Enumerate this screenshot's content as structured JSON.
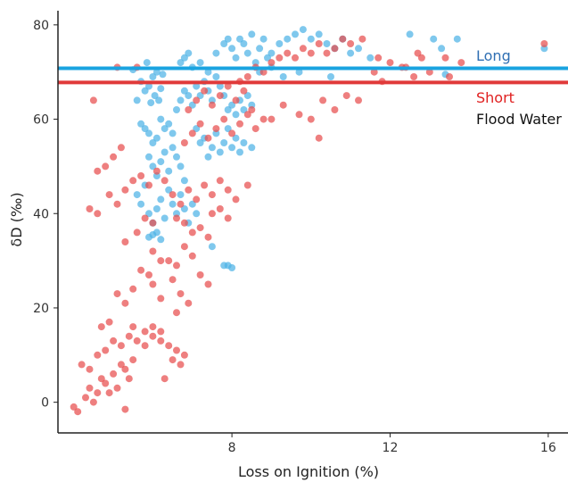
{
  "chart_data": {
    "type": "scatter",
    "title": "",
    "xlabel": "Loss on Ignition (%)",
    "ylabel": "δD (‰)",
    "xlim": [
      3.6,
      16.5
    ],
    "ylim": [
      -6.5,
      83
    ],
    "x_ticks": [
      8,
      12,
      16
    ],
    "y_ticks": [
      0,
      20,
      40,
      60,
      80
    ],
    "grid": false,
    "legend_placement": "right",
    "colors": {
      "long": "#4db3e6",
      "short": "#e84e4e",
      "long_line": "#1aa3e0",
      "short_line": "#e03a3a",
      "long_label": "#2f6fb3",
      "short_label": "#e02020",
      "flood_label": "#111111"
    },
    "reference_lines": [
      {
        "series": "Long",
        "y": 70.8
      },
      {
        "series": "Short",
        "y": 67.8
      }
    ],
    "legend": {
      "long": "Long",
      "short": "Short",
      "flood": "Flood Water"
    },
    "series": [
      {
        "name": "Long",
        "points": [
          [
            5.5,
            70.5
          ],
          [
            5.6,
            64
          ],
          [
            5.7,
            68
          ],
          [
            5.8,
            66
          ],
          [
            5.85,
            72
          ],
          [
            5.9,
            67
          ],
          [
            5.95,
            63.5
          ],
          [
            6.0,
            69
          ],
          [
            6.05,
            65
          ],
          [
            6.1,
            70
          ],
          [
            6.15,
            64
          ],
          [
            6.2,
            66.5
          ],
          [
            6.25,
            69.5
          ],
          [
            5.7,
            59
          ],
          [
            5.8,
            58
          ],
          [
            5.9,
            57
          ],
          [
            6.0,
            55
          ],
          [
            6.1,
            56
          ],
          [
            6.2,
            60
          ],
          [
            6.3,
            58
          ],
          [
            6.4,
            59
          ],
          [
            6.5,
            57
          ],
          [
            5.9,
            52
          ],
          [
            6.0,
            50
          ],
          [
            6.1,
            48
          ],
          [
            6.2,
            51
          ],
          [
            6.3,
            53
          ],
          [
            6.4,
            49
          ],
          [
            6.5,
            54
          ],
          [
            6.6,
            52
          ],
          [
            6.7,
            50
          ],
          [
            6.8,
            47
          ],
          [
            5.6,
            44
          ],
          [
            5.7,
            42
          ],
          [
            5.8,
            46
          ],
          [
            5.9,
            40
          ],
          [
            6.0,
            38
          ],
          [
            6.1,
            41
          ],
          [
            6.2,
            43
          ],
          [
            6.3,
            39
          ],
          [
            6.4,
            45
          ],
          [
            6.5,
            42
          ],
          [
            6.6,
            40
          ],
          [
            6.7,
            44
          ],
          [
            6.8,
            41
          ],
          [
            6.9,
            38
          ],
          [
            7.0,
            42
          ],
          [
            7.1,
            40
          ],
          [
            5.9,
            35
          ],
          [
            6.0,
            35.5
          ],
          [
            6.1,
            36
          ],
          [
            6.2,
            34.5
          ],
          [
            7.5,
            33
          ],
          [
            7.8,
            29
          ],
          [
            7.9,
            29
          ],
          [
            8.0,
            28.5
          ],
          [
            6.6,
            62
          ],
          [
            6.7,
            64
          ],
          [
            6.8,
            66
          ],
          [
            6.9,
            65
          ],
          [
            7.0,
            63
          ],
          [
            7.1,
            67
          ],
          [
            7.2,
            65
          ],
          [
            7.3,
            68
          ],
          [
            7.4,
            66
          ],
          [
            7.5,
            64
          ],
          [
            7.6,
            69
          ],
          [
            7.7,
            67
          ],
          [
            7.8,
            65
          ],
          [
            6.7,
            72
          ],
          [
            6.8,
            73
          ],
          [
            6.9,
            74
          ],
          [
            7.0,
            71
          ],
          [
            7.2,
            72
          ],
          [
            7.4,
            70
          ],
          [
            7.6,
            74
          ],
          [
            7.8,
            76
          ],
          [
            7.9,
            77
          ],
          [
            8.0,
            75
          ],
          [
            8.1,
            73
          ],
          [
            8.2,
            77
          ],
          [
            8.3,
            76
          ],
          [
            8.4,
            74
          ],
          [
            8.5,
            78
          ],
          [
            8.6,
            72
          ],
          [
            8.7,
            75
          ],
          [
            8.8,
            77
          ],
          [
            8.9,
            73
          ],
          [
            9.0,
            74
          ],
          [
            9.2,
            76
          ],
          [
            7.1,
            58
          ],
          [
            7.2,
            55
          ],
          [
            7.3,
            56
          ],
          [
            7.4,
            52
          ],
          [
            7.5,
            54
          ],
          [
            7.6,
            57
          ],
          [
            7.7,
            53
          ],
          [
            7.8,
            55
          ],
          [
            7.9,
            58
          ],
          [
            8.0,
            54
          ],
          [
            8.1,
            56
          ],
          [
            8.2,
            53
          ],
          [
            8.3,
            55
          ],
          [
            8.5,
            54
          ],
          [
            7.9,
            62
          ],
          [
            8.0,
            63
          ],
          [
            8.1,
            61
          ],
          [
            8.2,
            64
          ],
          [
            8.3,
            62
          ],
          [
            8.4,
            65
          ],
          [
            8.5,
            63
          ],
          [
            9.4,
            77
          ],
          [
            9.6,
            78
          ],
          [
            9.8,
            79
          ],
          [
            10.0,
            77
          ],
          [
            10.2,
            78
          ],
          [
            10.4,
            76
          ],
          [
            10.6,
            75
          ],
          [
            10.8,
            77
          ],
          [
            11.0,
            74
          ],
          [
            11.2,
            75
          ],
          [
            11.5,
            73
          ],
          [
            12.5,
            78
          ],
          [
            13.1,
            77
          ],
          [
            13.3,
            75
          ],
          [
            13.7,
            77
          ],
          [
            15.9,
            75
          ],
          [
            8.7,
            70
          ],
          [
            9.0,
            71
          ],
          [
            9.3,
            69
          ],
          [
            9.7,
            70
          ],
          [
            10.5,
            69
          ],
          [
            13.4,
            69.5
          ]
        ]
      },
      {
        "name": "Short",
        "points": [
          [
            4.5,
            64
          ],
          [
            5.1,
            71
          ],
          [
            5.6,
            71
          ],
          [
            4.0,
            -1
          ],
          [
            4.1,
            -2
          ],
          [
            4.3,
            1
          ],
          [
            4.4,
            3
          ],
          [
            4.5,
            0
          ],
          [
            4.6,
            2
          ],
          [
            4.7,
            5
          ],
          [
            4.8,
            4
          ],
          [
            4.9,
            2
          ],
          [
            5.0,
            6
          ],
          [
            5.1,
            3
          ],
          [
            5.2,
            8
          ],
          [
            5.3,
            7
          ],
          [
            5.4,
            5
          ],
          [
            5.5,
            9
          ],
          [
            4.2,
            8
          ],
          [
            4.4,
            7
          ],
          [
            4.6,
            10
          ],
          [
            4.8,
            11
          ],
          [
            5.0,
            13
          ],
          [
            5.2,
            12
          ],
          [
            5.4,
            14
          ],
          [
            5.6,
            13
          ],
          [
            5.8,
            12
          ],
          [
            6.0,
            14
          ],
          [
            6.2,
            13
          ],
          [
            6.4,
            12
          ],
          [
            6.6,
            11
          ],
          [
            6.8,
            10
          ],
          [
            4.7,
            16
          ],
          [
            4.9,
            17
          ],
          [
            5.5,
            16
          ],
          [
            5.8,
            15
          ],
          [
            6.0,
            16
          ],
          [
            6.2,
            15
          ],
          [
            5.3,
            -1.5
          ],
          [
            6.3,
            5
          ],
          [
            6.5,
            9
          ],
          [
            6.7,
            8
          ],
          [
            5.1,
            23
          ],
          [
            5.3,
            21
          ],
          [
            5.5,
            24
          ],
          [
            6.0,
            25
          ],
          [
            6.2,
            22
          ],
          [
            6.5,
            26
          ],
          [
            6.7,
            23
          ],
          [
            6.9,
            21
          ],
          [
            7.2,
            27
          ],
          [
            7.4,
            25
          ],
          [
            6.6,
            19
          ],
          [
            6.4,
            30
          ],
          [
            6.6,
            29
          ],
          [
            7.0,
            31
          ],
          [
            6.8,
            33
          ],
          [
            6.0,
            32
          ],
          [
            6.2,
            30
          ],
          [
            5.7,
            28
          ],
          [
            5.9,
            27
          ],
          [
            5.3,
            34
          ],
          [
            5.6,
            36
          ],
          [
            5.8,
            39
          ],
          [
            6.0,
            38
          ],
          [
            4.6,
            49
          ],
          [
            4.8,
            50
          ],
          [
            5.0,
            52
          ],
          [
            5.2,
            54
          ],
          [
            4.9,
            44
          ],
          [
            5.1,
            42
          ],
          [
            5.3,
            45
          ],
          [
            4.4,
            41
          ],
          [
            4.6,
            40
          ],
          [
            5.5,
            47
          ],
          [
            5.7,
            48
          ],
          [
            5.9,
            46
          ],
          [
            6.1,
            49
          ],
          [
            6.3,
            47
          ],
          [
            6.5,
            44
          ],
          [
            6.7,
            42
          ],
          [
            6.9,
            45
          ],
          [
            7.1,
            43
          ],
          [
            7.3,
            46
          ],
          [
            7.5,
            44
          ],
          [
            7.7,
            47
          ],
          [
            7.9,
            45
          ],
          [
            8.1,
            43
          ],
          [
            6.6,
            39
          ],
          [
            6.8,
            38
          ],
          [
            7.0,
            36
          ],
          [
            7.2,
            37
          ],
          [
            7.4,
            35
          ],
          [
            8.4,
            46
          ],
          [
            7.5,
            40
          ],
          [
            7.7,
            41
          ],
          [
            7.9,
            39
          ],
          [
            6.8,
            55
          ],
          [
            7.0,
            57
          ],
          [
            7.2,
            59
          ],
          [
            7.4,
            56
          ],
          [
            7.6,
            58
          ],
          [
            7.8,
            60
          ],
          [
            8.0,
            57
          ],
          [
            8.2,
            59
          ],
          [
            8.4,
            61
          ],
          [
            8.6,
            58
          ],
          [
            8.8,
            60
          ],
          [
            6.9,
            62
          ],
          [
            7.1,
            64
          ],
          [
            7.3,
            66
          ],
          [
            7.5,
            63
          ],
          [
            7.7,
            65
          ],
          [
            7.9,
            67
          ],
          [
            8.1,
            64
          ],
          [
            8.3,
            66
          ],
          [
            8.5,
            62
          ],
          [
            8.2,
            68
          ],
          [
            8.4,
            69
          ],
          [
            8.6,
            71
          ],
          [
            8.8,
            70
          ],
          [
            9.0,
            72
          ],
          [
            9.2,
            73
          ],
          [
            9.4,
            74
          ],
          [
            9.6,
            73
          ],
          [
            9.8,
            75
          ],
          [
            10.0,
            74
          ],
          [
            10.2,
            76
          ],
          [
            10.4,
            74
          ],
          [
            10.6,
            75
          ],
          [
            10.8,
            77
          ],
          [
            11.0,
            76
          ],
          [
            11.3,
            77
          ],
          [
            9.0,
            60
          ],
          [
            9.3,
            63
          ],
          [
            9.7,
            61
          ],
          [
            10.0,
            60
          ],
          [
            10.3,
            64
          ],
          [
            10.6,
            62
          ],
          [
            10.9,
            65
          ],
          [
            11.2,
            64
          ],
          [
            10.2,
            56
          ],
          [
            11.6,
            70
          ],
          [
            11.8,
            68
          ],
          [
            12.0,
            72
          ],
          [
            12.4,
            71
          ],
          [
            12.8,
            73
          ],
          [
            13.0,
            70
          ],
          [
            13.5,
            69
          ],
          [
            13.8,
            72
          ],
          [
            13.4,
            73
          ],
          [
            12.7,
            74
          ],
          [
            12.6,
            69
          ],
          [
            12.3,
            71
          ],
          [
            11.7,
            73
          ],
          [
            15.9,
            76
          ]
        ]
      }
    ]
  }
}
